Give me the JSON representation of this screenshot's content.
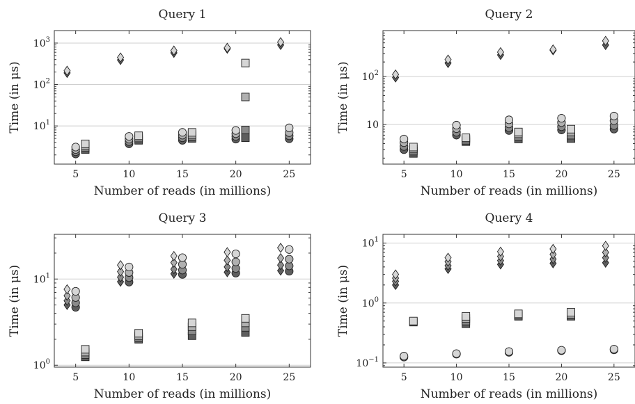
{
  "chart_data": [
    {
      "type": "scatter",
      "title": "Query 1",
      "xlabel": "Number of reads (in millions)",
      "ylabel": "Time (in μs)",
      "yscale": "log",
      "xlim": [
        3,
        27
      ],
      "ylim": [
        1.2,
        2000
      ],
      "xticks": [
        5,
        10,
        15,
        20,
        25
      ],
      "yticks": [
        {
          "value": 10,
          "base": "10",
          "exp": "1"
        },
        {
          "value": 100,
          "base": "10",
          "exp": "2"
        },
        {
          "value": 1000,
          "base": "10",
          "exp": "3"
        }
      ],
      "grid": true,
      "series": [
        {
          "marker": "diamond",
          "x": 4.2,
          "values": [
            190,
            215
          ]
        },
        {
          "marker": "diamond",
          "x": 9.2,
          "values": [
            390,
            450
          ]
        },
        {
          "marker": "diamond",
          "x": 14.2,
          "values": [
            580,
            660
          ]
        },
        {
          "marker": "diamond",
          "x": 19.2,
          "values": [
            730,
            770
          ]
        },
        {
          "marker": "diamond",
          "x": 24.2,
          "values": [
            900,
            1050
          ]
        },
        {
          "marker": "circle",
          "x": 5,
          "values": [
            2.1,
            2.4,
            2.7,
            3.1
          ]
        },
        {
          "marker": "circle",
          "x": 10,
          "values": [
            3.7,
            4.2,
            4.8,
            5.6
          ]
        },
        {
          "marker": "circle",
          "x": 15,
          "values": [
            4.5,
            5.2,
            6.0,
            7.0
          ]
        },
        {
          "marker": "circle",
          "x": 20,
          "values": [
            4.8,
            5.6,
            6.5,
            7.8
          ]
        },
        {
          "marker": "circle",
          "x": 25,
          "values": [
            4.9,
            5.8,
            6.9,
            9.0
          ]
        },
        {
          "marker": "square",
          "x": 5.9,
          "values": [
            2.7,
            3.0,
            3.3,
            3.7
          ]
        },
        {
          "marker": "square",
          "x": 10.9,
          "values": [
            4.5,
            4.9,
            5.3,
            5.8
          ]
        },
        {
          "marker": "square",
          "x": 15.9,
          "values": [
            5.0,
            5.6,
            6.2,
            7.0
          ]
        },
        {
          "marker": "square",
          "x": 20.9,
          "values": [
            5.2,
            8.0,
            50,
            330
          ]
        }
      ]
    },
    {
      "type": "scatter",
      "title": "Query 2",
      "xlabel": "Number of reads (in millions)",
      "ylabel": "Time (in μs)",
      "yscale": "log",
      "xlim": [
        3,
        27
      ],
      "ylim": [
        1.5,
        900
      ],
      "xticks": [
        5,
        10,
        15,
        20,
        25
      ],
      "yticks": [
        {
          "value": 10,
          "base": "10",
          "exp": ""
        },
        {
          "value": 100,
          "base": "10",
          "exp": "2"
        }
      ],
      "grid": true,
      "series": [
        {
          "marker": "diamond",
          "x": 4.2,
          "values": [
            95,
            110
          ]
        },
        {
          "marker": "diamond",
          "x": 9.2,
          "values": [
            190,
            225
          ]
        },
        {
          "marker": "diamond",
          "x": 14.2,
          "values": [
            280,
            320
          ]
        },
        {
          "marker": "diamond",
          "x": 19.2,
          "values": [
            350,
            365
          ]
        },
        {
          "marker": "diamond",
          "x": 24.2,
          "values": [
            450,
            550
          ]
        },
        {
          "marker": "circle",
          "x": 5,
          "values": [
            3.0,
            3.5,
            4.2,
            5.0
          ]
        },
        {
          "marker": "circle",
          "x": 10,
          "values": [
            6.0,
            6.9,
            8.2,
            9.7
          ]
        },
        {
          "marker": "circle",
          "x": 15,
          "values": [
            7.5,
            8.6,
            10.3,
            12.5
          ]
        },
        {
          "marker": "circle",
          "x": 20,
          "values": [
            7.7,
            9.0,
            11.0,
            13.5
          ]
        },
        {
          "marker": "circle",
          "x": 25,
          "values": [
            8.0,
            9.5,
            12.0,
            15.0
          ]
        },
        {
          "marker": "square",
          "x": 5.9,
          "values": [
            2.5,
            2.8,
            3.1,
            3.4
          ]
        },
        {
          "marker": "square",
          "x": 10.9,
          "values": [
            4.4,
            4.7,
            5.0,
            5.3
          ]
        },
        {
          "marker": "square",
          "x": 15.9,
          "values": [
            5.0,
            5.7,
            6.4,
            7.0
          ]
        },
        {
          "marker": "square",
          "x": 20.9,
          "values": [
            5.1,
            6.0,
            7.0,
            8.0
          ]
        }
      ]
    },
    {
      "type": "scatter",
      "title": "Query 3",
      "xlabel": "Number of reads (in millions)",
      "ylabel": "Time (in μs)",
      "yscale": "log",
      "xlim": [
        3,
        27
      ],
      "ylim": [
        0.95,
        33
      ],
      "xticks": [
        5,
        10,
        15,
        20,
        25
      ],
      "yticks": [
        {
          "value": 1,
          "base": "10",
          "exp": "0"
        },
        {
          "value": 10,
          "base": "10",
          "exp": "1"
        }
      ],
      "grid": true,
      "series": [
        {
          "marker": "diamond",
          "x": 4.2,
          "values": [
            5.0,
            5.6,
            6.4,
            7.6
          ]
        },
        {
          "marker": "diamond",
          "x": 9.2,
          "values": [
            9.3,
            10.5,
            12.2,
            14.5
          ]
        },
        {
          "marker": "diamond",
          "x": 14.2,
          "values": [
            11.5,
            13.0,
            15.5,
            18.5
          ]
        },
        {
          "marker": "diamond",
          "x": 19.2,
          "values": [
            12.0,
            13.8,
            16.5,
            20.5
          ]
        },
        {
          "marker": "diamond",
          "x": 24.2,
          "values": [
            12.5,
            14.5,
            17.5,
            23.0
          ]
        },
        {
          "marker": "circle",
          "x": 5,
          "values": [
            4.7,
            5.3,
            6.1,
            7.2
          ]
        },
        {
          "marker": "circle",
          "x": 10,
          "values": [
            9.2,
            10.4,
            11.9,
            13.8
          ]
        },
        {
          "marker": "circle",
          "x": 15,
          "values": [
            11.3,
            12.7,
            14.8,
            17.7
          ]
        },
        {
          "marker": "circle",
          "x": 20,
          "values": [
            11.7,
            13.3,
            15.8,
            19.6
          ]
        },
        {
          "marker": "circle",
          "x": 25,
          "values": [
            12.3,
            14.2,
            17.0,
            22.0
          ]
        },
        {
          "marker": "square",
          "x": 5.9,
          "values": [
            1.25,
            1.33,
            1.42,
            1.53
          ]
        },
        {
          "marker": "square",
          "x": 10.9,
          "values": [
            2.0,
            2.1,
            2.2,
            2.35
          ]
        },
        {
          "marker": "square",
          "x": 15.9,
          "values": [
            2.2,
            2.5,
            2.8,
            3.1
          ]
        },
        {
          "marker": "square",
          "x": 20.9,
          "values": [
            2.4,
            2.75,
            3.1,
            3.5
          ]
        }
      ]
    },
    {
      "type": "scatter",
      "title": "Query 4",
      "xlabel": "Number of reads (in millions)",
      "ylabel": "Time (in μs)",
      "yscale": "log",
      "xlim": [
        3,
        27
      ],
      "ylim": [
        0.085,
        14
      ],
      "xticks": [
        5,
        10,
        15,
        20,
        25
      ],
      "yticks": [
        {
          "value": 0.1,
          "base": "10",
          "exp": "−1"
        },
        {
          "value": 1,
          "base": "10",
          "exp": "0"
        },
        {
          "value": 10,
          "base": "10",
          "exp": "1"
        }
      ],
      "grid": true,
      "series": [
        {
          "marker": "diamond",
          "x": 4.2,
          "values": [
            2.0,
            2.3,
            2.6,
            3.0
          ]
        },
        {
          "marker": "diamond",
          "x": 9.2,
          "values": [
            3.7,
            4.2,
            4.9,
            5.7
          ]
        },
        {
          "marker": "diamond",
          "x": 14.2,
          "values": [
            4.4,
            5.1,
            6.0,
            7.2
          ]
        },
        {
          "marker": "diamond",
          "x": 19.2,
          "values": [
            4.6,
            5.4,
            6.5,
            8.0
          ]
        },
        {
          "marker": "diamond",
          "x": 24.2,
          "values": [
            4.7,
            5.7,
            7.0,
            9.0
          ]
        },
        {
          "marker": "circle",
          "x": 5,
          "values": [
            0.125,
            0.13
          ]
        },
        {
          "marker": "circle",
          "x": 10,
          "values": [
            0.14,
            0.143
          ]
        },
        {
          "marker": "circle",
          "x": 15,
          "values": [
            0.15,
            0.155
          ]
        },
        {
          "marker": "circle",
          "x": 20,
          "values": [
            0.16,
            0.163
          ]
        },
        {
          "marker": "circle",
          "x": 25,
          "values": [
            0.165,
            0.17
          ]
        },
        {
          "marker": "square",
          "x": 5.9,
          "values": [
            0.48,
            0.5
          ]
        },
        {
          "marker": "square",
          "x": 10.9,
          "values": [
            0.45,
            0.5,
            0.55,
            0.6
          ]
        },
        {
          "marker": "square",
          "x": 15.9,
          "values": [
            0.6,
            0.63,
            0.66
          ]
        },
        {
          "marker": "square",
          "x": 20.9,
          "values": [
            0.6,
            0.65,
            0.7
          ]
        }
      ]
    }
  ],
  "colors": {
    "shades": [
      "#5e5e5e",
      "#8a8a8a",
      "#b0b0b0",
      "#d6d6d6"
    ],
    "grid": "#cfcfcf",
    "frame": "#333333"
  }
}
